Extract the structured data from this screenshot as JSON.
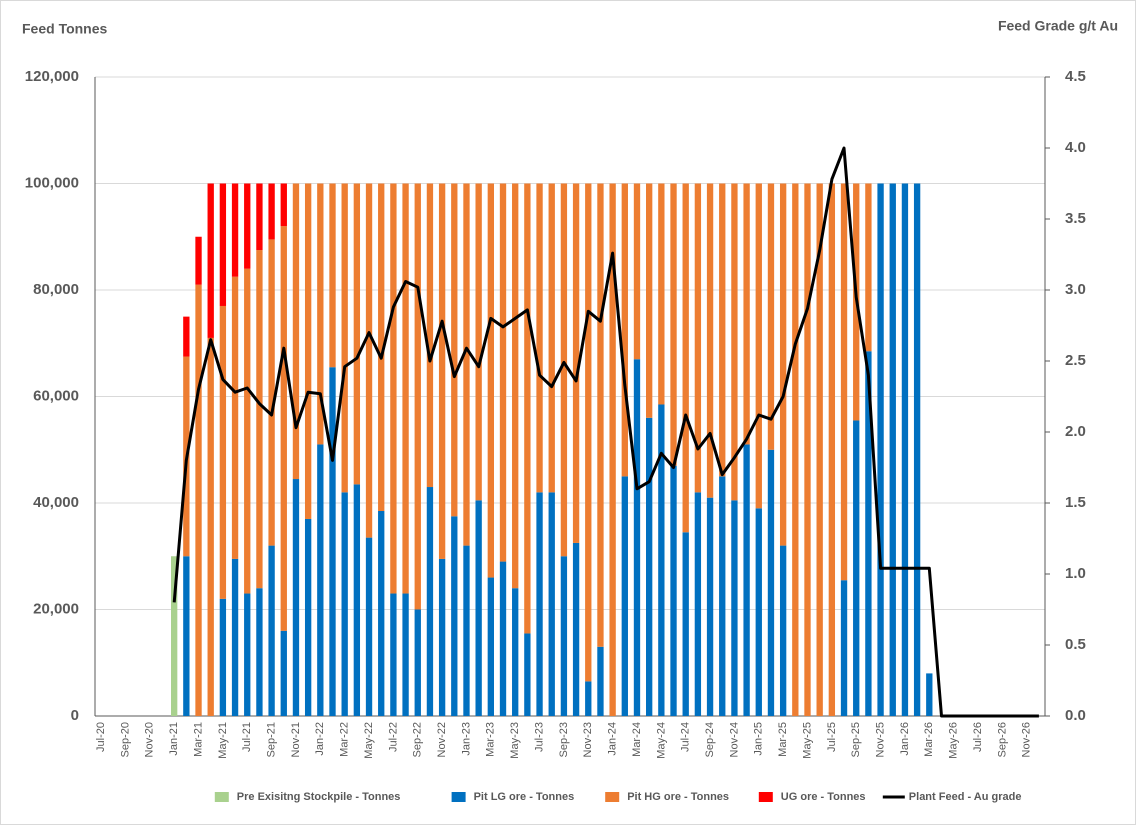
{
  "chart_data": {
    "type": "bar",
    "stacked": true,
    "y_label": "Feed Tonnes",
    "y2_label": "Feed Grade g/t Au",
    "categories": [
      "Jul-20",
      null,
      "Sep-20",
      null,
      "Nov-20",
      null,
      "Jan-21",
      null,
      "Mar-21",
      null,
      "May-21",
      null,
      "Jul-21",
      null,
      "Sep-21",
      null,
      "Nov-21",
      null,
      "Jan-22",
      null,
      "Mar-22",
      null,
      "May-22",
      null,
      "Jul-22",
      null,
      "Sep-22",
      null,
      "Nov-22",
      null,
      "Jan-23",
      null,
      "Mar-23",
      null,
      "May-23",
      null,
      "Jul-23",
      null,
      "Sep-23",
      null,
      "Nov-23",
      null,
      "Jan-24",
      null,
      "Mar-24",
      null,
      "May-24",
      null,
      "Jul-24",
      null,
      "Sep-24",
      null,
      "Nov-24",
      null,
      "Jan-25",
      null,
      "Mar-25",
      null,
      "May-25",
      null,
      "Jul-25",
      null,
      "Sep-25",
      null,
      "Nov-25",
      null,
      "Jan-26",
      null,
      "Mar-26",
      null,
      "May-26",
      null,
      "Jul-26",
      null,
      "Sep-26",
      null,
      "Nov-26",
      null
    ],
    "series": [
      {
        "name": "Pre Exisitng Stockpile  - Tonnes",
        "color": "#a9d18e",
        "values": [
          0,
          0,
          0,
          0,
          0,
          0,
          30000,
          0,
          0,
          0,
          0,
          0,
          0,
          0,
          0,
          0,
          0,
          0,
          0,
          0,
          0,
          0,
          0,
          0,
          0,
          0,
          0,
          0,
          0,
          0,
          0,
          0,
          0,
          0,
          0,
          0,
          0,
          0,
          0,
          0,
          0,
          0,
          0,
          0,
          0,
          0,
          0,
          0,
          0,
          0,
          0,
          0,
          0,
          0,
          0,
          0,
          0,
          0,
          0,
          0,
          0,
          0,
          0,
          0,
          0,
          0,
          0,
          0,
          0,
          0,
          0,
          0,
          0,
          0,
          0,
          0,
          0,
          0
        ]
      },
      {
        "name": "Pit LG ore - Tonnes",
        "color": "#0070c0",
        "values": [
          0,
          0,
          0,
          0,
          0,
          0,
          0,
          30000,
          0,
          0,
          22000,
          29500,
          23000,
          24000,
          32000,
          16000,
          44500,
          37000,
          51000,
          65500,
          42000,
          43500,
          33500,
          38500,
          23000,
          23000,
          20000,
          43000,
          29500,
          37500,
          32000,
          40500,
          26000,
          29000,
          24000,
          15500,
          42000,
          42000,
          30000,
          32500,
          6500,
          13000,
          0,
          45000,
          67000,
          56000,
          58500,
          47000,
          34500,
          42000,
          41000,
          45000,
          40500,
          51000,
          39000,
          50000,
          32000,
          0,
          0,
          0,
          0,
          25500,
          55500,
          68500,
          100000,
          100000,
          100000,
          100000,
          8000,
          0,
          0,
          0,
          0,
          0,
          0,
          0,
          0,
          0
        ]
      },
      {
        "name": "Pit HG ore - Tonnes",
        "color": "#ed7d31",
        "values": [
          0,
          0,
          0,
          0,
          0,
          0,
          0,
          37500,
          81000,
          71000,
          55000,
          53000,
          61000,
          63500,
          57500,
          76000,
          55500,
          63000,
          49000,
          34500,
          58000,
          56500,
          66500,
          61500,
          77000,
          77000,
          80000,
          57000,
          70500,
          62500,
          68000,
          59500,
          74000,
          71000,
          76000,
          84500,
          58000,
          58000,
          70000,
          67500,
          93500,
          87000,
          100000,
          55000,
          33000,
          44000,
          41500,
          53000,
          65500,
          58000,
          59000,
          55000,
          59500,
          49000,
          61000,
          50000,
          68000,
          100000,
          100000,
          100000,
          100000,
          74500,
          44500,
          31500,
          0,
          0,
          0,
          0,
          0,
          0,
          0,
          0,
          0,
          0,
          0,
          0,
          0,
          0
        ]
      },
      {
        "name": "UG ore - Tonnes",
        "color": "#ff0000",
        "values": [
          0,
          0,
          0,
          0,
          0,
          0,
          0,
          7500,
          9000,
          29000,
          23000,
          17500,
          16000,
          12500,
          10500,
          8000,
          0,
          0,
          0,
          0,
          0,
          0,
          0,
          0,
          0,
          0,
          0,
          0,
          0,
          0,
          0,
          0,
          0,
          0,
          0,
          0,
          0,
          0,
          0,
          0,
          0,
          0,
          0,
          0,
          0,
          0,
          0,
          0,
          0,
          0,
          0,
          0,
          0,
          0,
          0,
          0,
          0,
          0,
          0,
          0,
          0,
          0,
          0,
          0,
          0,
          0,
          0,
          0,
          0,
          0,
          0,
          0,
          0,
          0,
          0,
          0,
          0,
          0
        ]
      },
      {
        "name": "Plant Feed - Au grade",
        "color": "#000000",
        "type": "line",
        "axis": "y2",
        "values": [
          null,
          null,
          null,
          null,
          null,
          null,
          0.8,
          1.8,
          2.3,
          2.65,
          2.37,
          2.28,
          2.31,
          2.2,
          2.12,
          2.59,
          2.03,
          2.28,
          2.27,
          1.8,
          2.46,
          2.52,
          2.7,
          2.52,
          2.88,
          3.06,
          3.02,
          2.5,
          2.78,
          2.39,
          2.59,
          2.46,
          2.8,
          2.74,
          2.8,
          2.86,
          2.4,
          2.32,
          2.49,
          2.36,
          2.85,
          2.78,
          3.26,
          2.33,
          1.6,
          1.65,
          1.85,
          1.75,
          2.12,
          1.88,
          1.99,
          1.7,
          1.82,
          1.95,
          2.12,
          2.09,
          2.25,
          2.62,
          2.87,
          3.28,
          3.78,
          4.0,
          2.95,
          2.4,
          1.04,
          1.04,
          1.04,
          1.04,
          1.04,
          0,
          0,
          0,
          0,
          0,
          0,
          0,
          0,
          0
        ]
      }
    ],
    "ylim": [
      0,
      120000
    ],
    "yticks": [
      {
        "value": 0,
        "label": "0"
      },
      {
        "value": 20000,
        "label": "20,000"
      },
      {
        "value": 40000,
        "label": "40,000"
      },
      {
        "value": 60000,
        "label": "60,000"
      },
      {
        "value": 80000,
        "label": "80,000"
      },
      {
        "value": 100000,
        "label": "100,000"
      },
      {
        "value": 120000,
        "label": "120,000"
      }
    ],
    "y2lim": [
      0,
      4.5
    ],
    "y2ticks": [
      {
        "value": 0,
        "label": "0.0"
      },
      0.5,
      {
        "value": 1,
        "label": "1.0"
      },
      1.5,
      {
        "value": 2,
        "label": "2.0"
      },
      2.5,
      {
        "value": 3,
        "label": "3.0"
      },
      3.5,
      {
        "value": 4,
        "label": "4.0"
      },
      4.5
    ],
    "grid": true,
    "legend": "bottom"
  }
}
